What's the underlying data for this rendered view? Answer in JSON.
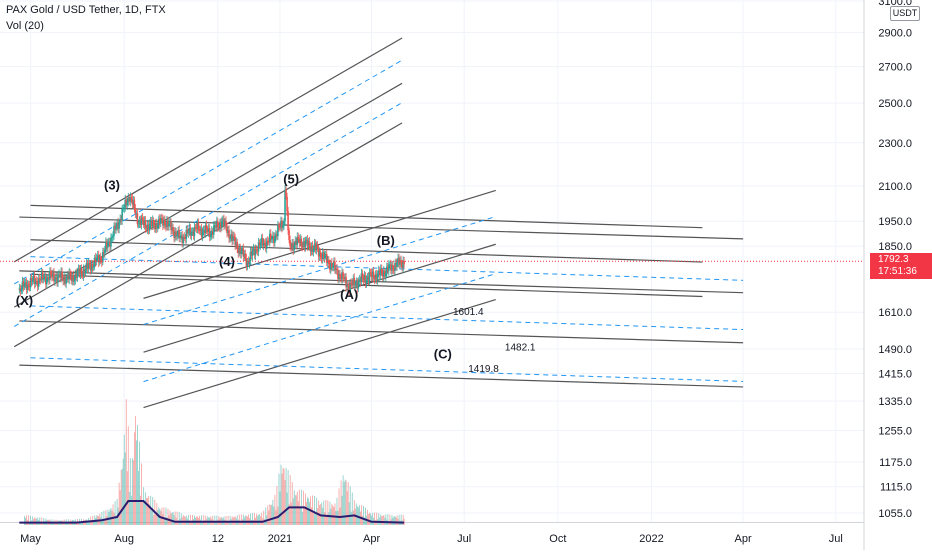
{
  "header": {
    "symbol_line": "PAX Gold / USD Tether, 1D, FTX",
    "volume_label": "Vol (20)"
  },
  "price_axis": {
    "currency": "USDT",
    "last_price": "1792.3",
    "countdown": "17:51:36"
  },
  "colors": {
    "up": "#26a69a",
    "down": "#ef5350",
    "channel": "#555555",
    "channel_dashed": "#2196f3",
    "volume_ma": "#2a1c6e",
    "last_price_line": "#f23645",
    "grid": "#f0f3fa"
  },
  "chart_data": {
    "type": "candlestick",
    "title": "PAX Gold / USD Tether, 1D, FTX",
    "y_axis": {
      "ticks": [
        1055.0,
        1115.0,
        1175.0,
        1255.0,
        1335.0,
        1415.0,
        1490.0,
        1610.0,
        1850.0,
        1950.0,
        2100.0,
        2300.0,
        2500.0,
        2700.0,
        2900.0,
        3100.0
      ],
      "range": [
        1040,
        3120
      ],
      "scale": "log"
    },
    "x_axis": {
      "ticks": [
        "May",
        "Aug",
        "12",
        "2021",
        "Apr",
        "Jul",
        "Oct",
        "2022",
        "Apr",
        "Jul"
      ],
      "tick_dates": [
        "2020-05-01",
        "2020-08-01",
        "2020-11-01",
        "2021-01-01",
        "2021-04-01",
        "2021-07-01",
        "2021-10-01",
        "2022-01-01",
        "2022-04-01",
        "2022-07-01"
      ],
      "range": [
        "2020-04-01",
        "2022-07-15"
      ]
    },
    "price_series": [
      {
        "date": "2020-04-20",
        "price": 1690
      },
      {
        "date": "2020-05-01",
        "price": 1715
      },
      {
        "date": "2020-05-20",
        "price": 1735
      },
      {
        "date": "2020-06-10",
        "price": 1730
      },
      {
        "date": "2020-06-25",
        "price": 1765
      },
      {
        "date": "2020-07-10",
        "price": 1810
      },
      {
        "date": "2020-07-25",
        "price": 1930
      },
      {
        "date": "2020-08-06",
        "price": 2060
      },
      {
        "date": "2020-08-15",
        "price": 1950
      },
      {
        "date": "2020-08-25",
        "price": 1930
      },
      {
        "date": "2020-09-10",
        "price": 1950
      },
      {
        "date": "2020-09-25",
        "price": 1880
      },
      {
        "date": "2020-10-10",
        "price": 1920
      },
      {
        "date": "2020-10-25",
        "price": 1905
      },
      {
        "date": "2020-11-05",
        "price": 1950
      },
      {
        "date": "2020-11-15",
        "price": 1880
      },
      {
        "date": "2020-11-30",
        "price": 1790
      },
      {
        "date": "2020-12-10",
        "price": 1850
      },
      {
        "date": "2020-12-25",
        "price": 1880
      },
      {
        "date": "2021-01-05",
        "price": 1950
      },
      {
        "date": "2021-01-06",
        "price": 2110
      },
      {
        "date": "2021-01-10",
        "price": 1850
      },
      {
        "date": "2021-01-20",
        "price": 1870
      },
      {
        "date": "2021-02-05",
        "price": 1840
      },
      {
        "date": "2021-02-20",
        "price": 1780
      },
      {
        "date": "2021-03-01",
        "price": 1740
      },
      {
        "date": "2021-03-10",
        "price": 1700
      },
      {
        "date": "2021-03-25",
        "price": 1730
      },
      {
        "date": "2021-04-10",
        "price": 1745
      },
      {
        "date": "2021-04-25",
        "price": 1780
      },
      {
        "date": "2021-05-03",
        "price": 1792
      }
    ],
    "volume_series": [
      {
        "date": "2020-04-25",
        "value": 0.08
      },
      {
        "date": "2020-05-25",
        "value": 0.04
      },
      {
        "date": "2020-06-25",
        "value": 0.05
      },
      {
        "date": "2020-07-15",
        "value": 0.12
      },
      {
        "date": "2020-07-25",
        "value": 0.2
      },
      {
        "date": "2020-07-30",
        "value": 0.55
      },
      {
        "date": "2020-08-03",
        "value": 1.0
      },
      {
        "date": "2020-08-08",
        "value": 0.4
      },
      {
        "date": "2020-08-12",
        "value": 1.0
      },
      {
        "date": "2020-08-20",
        "value": 0.3
      },
      {
        "date": "2020-09-05",
        "value": 0.15
      },
      {
        "date": "2020-10-01",
        "value": 0.08
      },
      {
        "date": "2020-11-10",
        "value": 0.07
      },
      {
        "date": "2020-12-15",
        "value": 0.1
      },
      {
        "date": "2020-12-28",
        "value": 0.25
      },
      {
        "date": "2021-01-03",
        "value": 0.55
      },
      {
        "date": "2021-01-08",
        "value": 0.45
      },
      {
        "date": "2021-01-15",
        "value": 0.3
      },
      {
        "date": "2021-02-10",
        "value": 0.2
      },
      {
        "date": "2021-02-25",
        "value": 0.18
      },
      {
        "date": "2021-03-05",
        "value": 0.45
      },
      {
        "date": "2021-03-15",
        "value": 0.2
      },
      {
        "date": "2021-04-01",
        "value": 0.1
      },
      {
        "date": "2021-04-20",
        "value": 0.08
      }
    ],
    "volume_ma": [
      {
        "date": "2020-04-20",
        "value": 0.03
      },
      {
        "date": "2020-06-15",
        "value": 0.03
      },
      {
        "date": "2020-07-10",
        "value": 0.06
      },
      {
        "date": "2020-07-25",
        "value": 0.1
      },
      {
        "date": "2020-08-05",
        "value": 0.3
      },
      {
        "date": "2020-08-20",
        "value": 0.3
      },
      {
        "date": "2020-09-05",
        "value": 0.1
      },
      {
        "date": "2020-09-20",
        "value": 0.04
      },
      {
        "date": "2020-12-15",
        "value": 0.04
      },
      {
        "date": "2020-12-30",
        "value": 0.1
      },
      {
        "date": "2021-01-10",
        "value": 0.22
      },
      {
        "date": "2021-01-25",
        "value": 0.22
      },
      {
        "date": "2021-02-10",
        "value": 0.12
      },
      {
        "date": "2021-03-01",
        "value": 0.1
      },
      {
        "date": "2021-03-15",
        "value": 0.12
      },
      {
        "date": "2021-04-01",
        "value": 0.04
      },
      {
        "date": "2021-05-03",
        "value": 0.03
      }
    ],
    "wave_labels": [
      {
        "text": "(X)",
        "date": "2020-04-25",
        "price": 1635
      },
      {
        "text": "(3)",
        "date": "2020-07-20",
        "price": 2085
      },
      {
        "text": "(4)",
        "date": "2020-11-10",
        "price": 1775
      },
      {
        "text": "(5)",
        "date": "2021-01-12",
        "price": 2110
      },
      {
        "text": "(A)",
        "date": "2021-03-10",
        "price": 1655
      },
      {
        "text": "(B)",
        "date": "2021-04-15",
        "price": 1855
      },
      {
        "text": "(C)",
        "date": "2021-06-10",
        "price": 1460
      }
    ],
    "level_labels": [
      {
        "text": "1601.4",
        "date": "2021-06-20",
        "price": 1600
      },
      {
        "text": "1482.1",
        "date": "2021-08-10",
        "price": 1485
      },
      {
        "text": "1419.8",
        "date": "2021-07-05",
        "price": 1420
      }
    ],
    "channels": [
      {
        "style": "solid",
        "p1": {
          "date": "2020-06-10",
          "price": 1870
        },
        "p2": {
          "date": "2021-04-10",
          "price": 1830
        },
        "start": "2020-05-01",
        "end": "2022-02-20",
        "offsets": [
          1.075,
          1.0,
          0.93
        ]
      },
      {
        "style": "solid",
        "p1": {
          "date": "2020-06-15",
          "price": 1750
        },
        "p2": {
          "date": "2021-03-10",
          "price": 1720
        },
        "start": "2020-04-20",
        "end": "2022-04-01",
        "offsets": [
          1.12,
          1.0,
          0.9,
          0.82
        ]
      },
      {
        "style": "solid",
        "p1": {
          "date": "2020-05-01",
          "price": 1660
        },
        "p2": {
          "date": "2020-08-01",
          "price": 1860
        },
        "start": "2020-04-15",
        "end": "2021-05-01",
        "offsets": [
          1.1,
          1.0,
          0.92
        ]
      },
      {
        "style": "solid",
        "p1": {
          "date": "2020-08-20",
          "price": 1480
        },
        "p2": {
          "date": "2021-03-10",
          "price": 1690
        },
        "start": "2020-08-20",
        "end": "2021-08-01",
        "offsets": [
          1.12,
          1.0,
          0.89
        ]
      },
      {
        "style": "dashed",
        "p1": {
          "date": "2020-06-10",
          "price": 1870
        },
        "p2": {
          "date": "2021-04-10",
          "price": 1830
        },
        "start": "2020-05-01",
        "end": "2022-04-01",
        "offsets": [
          0.965,
          0.87,
          0.78
        ]
      },
      {
        "style": "dashed",
        "p1": {
          "date": "2020-05-01",
          "price": 1660
        },
        "p2": {
          "date": "2020-08-01",
          "price": 1860
        },
        "start": "2020-04-15",
        "end": "2021-05-01",
        "offsets": [
          1.05,
          0.96
        ]
      },
      {
        "style": "dashed",
        "p1": {
          "date": "2020-08-20",
          "price": 1480
        },
        "p2": {
          "date": "2021-03-10",
          "price": 1690
        },
        "start": "2020-08-20",
        "end": "2021-08-01",
        "offsets": [
          1.06,
          0.94
        ]
      }
    ]
  }
}
